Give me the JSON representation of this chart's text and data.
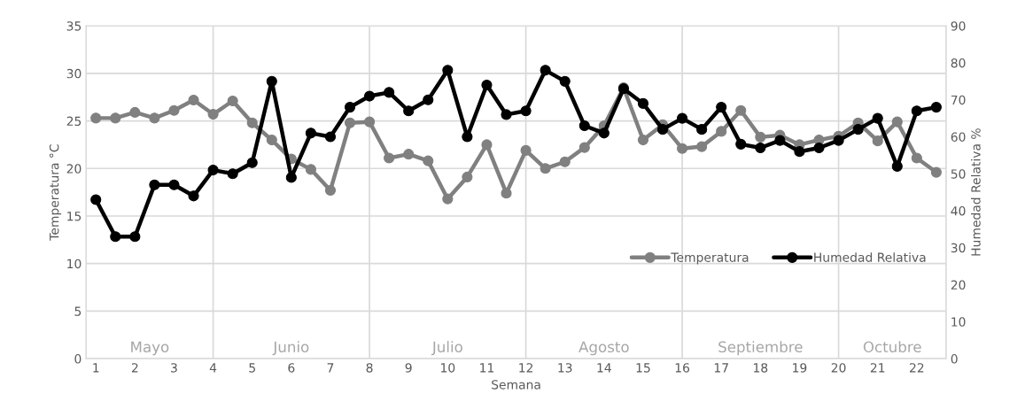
{
  "chart_data": {
    "type": "line",
    "xlabel": "Semana",
    "ylabel": "Temperatura °C",
    "y2label": "Humedad Relativa %",
    "x": [
      1,
      1.5,
      2,
      2.5,
      3,
      3.5,
      4,
      4.5,
      5,
      5.5,
      6,
      6.5,
      7,
      7.5,
      8,
      8.5,
      9,
      9.5,
      10,
      10.5,
      11,
      11.5,
      12,
      12.5,
      13,
      13.5,
      14,
      14.5,
      15,
      15.5,
      16,
      16.5,
      17,
      17.5,
      18,
      18.5,
      19,
      19.5,
      20,
      20.5,
      21,
      21.5,
      22,
      22.5
    ],
    "series": [
      {
        "name": "Temperatura",
        "color": "#808080",
        "values": [
          25.3,
          25.3,
          25.9,
          25.3,
          26.1,
          27.2,
          25.7,
          27.1,
          24.8,
          23.0,
          21.0,
          19.9,
          17.7,
          24.8,
          24.9,
          21.1,
          21.5,
          20.8,
          16.8,
          19.1,
          22.5,
          17.4,
          21.9,
          20.0,
          20.7,
          22.2,
          24.5,
          28.5,
          23.0,
          24.6,
          22.1,
          22.3,
          23.9,
          26.1,
          23.3,
          23.5,
          22.5,
          23.0,
          23.4,
          24.8,
          22.9,
          24.9,
          21.1,
          19.6
        ]
      },
      {
        "name": "Humedad Relativa",
        "color": "#000000",
        "axis": "y2",
        "values": [
          43,
          33,
          33,
          47,
          47,
          44,
          51,
          50,
          53,
          75,
          49,
          61,
          60,
          68,
          71,
          72,
          67,
          70,
          78,
          60,
          74,
          66,
          67,
          78,
          75,
          63,
          61,
          73,
          69,
          62,
          65,
          62,
          68,
          58,
          57,
          59,
          56,
          57,
          59,
          62,
          65,
          52,
          67,
          68
        ]
      }
    ],
    "xlim": [
      0.75,
      22.75
    ],
    "xticks": [
      1,
      2,
      3,
      4,
      5,
      6,
      7,
      8,
      9,
      10,
      11,
      12,
      13,
      14,
      15,
      16,
      17,
      18,
      19,
      20,
      21,
      22
    ],
    "ylim": [
      0,
      35
    ],
    "yticks": [
      0,
      5,
      10,
      15,
      20,
      25,
      30,
      35
    ],
    "y2lim": [
      0,
      90
    ],
    "y2ticks": [
      0,
      10,
      20,
      30,
      40,
      50,
      60,
      70,
      80,
      90
    ],
    "ref_lines": [
      {
        "axis": "x",
        "value": 4,
        "color": "#d9d9d9"
      },
      {
        "axis": "x",
        "value": 8,
        "color": "#d9d9d9"
      },
      {
        "axis": "x",
        "value": 12,
        "color": "#d9d9d9"
      },
      {
        "axis": "x",
        "value": 16,
        "color": "#d9d9d9"
      },
      {
        "axis": "x",
        "value": 20,
        "color": "#d9d9d9"
      }
    ],
    "annotations": [
      "Mayo",
      "Junio",
      "Julio",
      "Agosto",
      "Septiembre",
      "Octubre"
    ],
    "grid": "y",
    "legend": "bottom right",
    "marker": "circle",
    "line_style": "solid"
  }
}
